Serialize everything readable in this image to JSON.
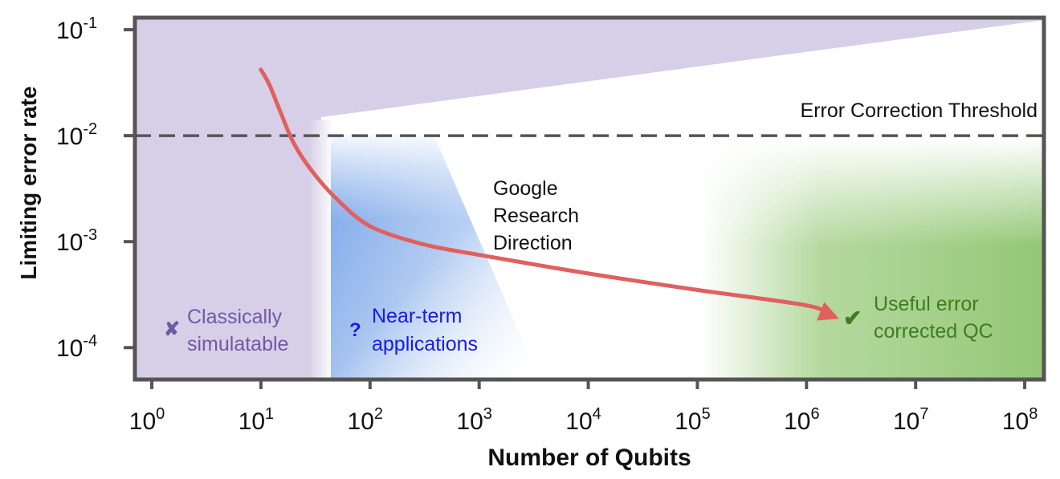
{
  "chart_data": {
    "type": "line",
    "xlabel": "Number of Qubits",
    "ylabel": "Limiting error rate",
    "x_scale": "log",
    "y_scale": "log",
    "xlim": [
      0.7,
      150000000
    ],
    "ylim": [
      5e-05,
      0.13
    ],
    "x_ticks": [
      {
        "value": 1,
        "base": "10",
        "exp": "0"
      },
      {
        "value": 10,
        "base": "10",
        "exp": "1"
      },
      {
        "value": 100,
        "base": "10",
        "exp": "2"
      },
      {
        "value": 1000,
        "base": "10",
        "exp": "3"
      },
      {
        "value": 10000,
        "base": "10",
        "exp": "4"
      },
      {
        "value": 100000,
        "base": "10",
        "exp": "5"
      },
      {
        "value": 1000000,
        "base": "10",
        "exp": "6"
      },
      {
        "value": 10000000,
        "base": "10",
        "exp": "7"
      },
      {
        "value": 100000000,
        "base": "10",
        "exp": "8"
      }
    ],
    "y_ticks": [
      {
        "value": 0.1,
        "base": "10",
        "exp": "-1"
      },
      {
        "value": 0.01,
        "base": "10",
        "exp": "-2"
      },
      {
        "value": 0.001,
        "base": "10",
        "exp": "-3"
      },
      {
        "value": 0.0001,
        "base": "10",
        "exp": "-4"
      }
    ],
    "threshold": {
      "y": 0.01,
      "label": "Error Correction Threshold",
      "color": "#555555"
    },
    "series": [
      {
        "color": "#e06060",
        "x": [
          10,
          12,
          15,
          20,
          30,
          50,
          100,
          300,
          1000,
          10000,
          100000,
          1000000,
          1700000
        ],
        "y": [
          0.042,
          0.03,
          0.017,
          0.0085,
          0.0045,
          0.0025,
          0.0014,
          0.00095,
          0.00075,
          0.0005,
          0.00035,
          0.00025,
          0.0002
        ]
      }
    ],
    "regions": {
      "classical": {
        "label_lines": [
          "Classically",
          "simulatable"
        ],
        "color": "#6e5aa6",
        "fill": "#d7cfe7",
        "marker": "✘"
      },
      "near_term": {
        "label_lines": [
          "Near-term",
          "applications"
        ],
        "color": "#1a1ae6",
        "fill": "#6ea0e6",
        "marker": "?"
      },
      "useful_qc": {
        "label_lines": [
          "Useful error",
          "corrected QC"
        ],
        "color": "#3f7d20",
        "fill": "#9ccc7f",
        "marker": "✔"
      },
      "google": {
        "label_lines": [
          "Google",
          "Research",
          "Direction"
        ],
        "color": "#111111"
      }
    }
  }
}
